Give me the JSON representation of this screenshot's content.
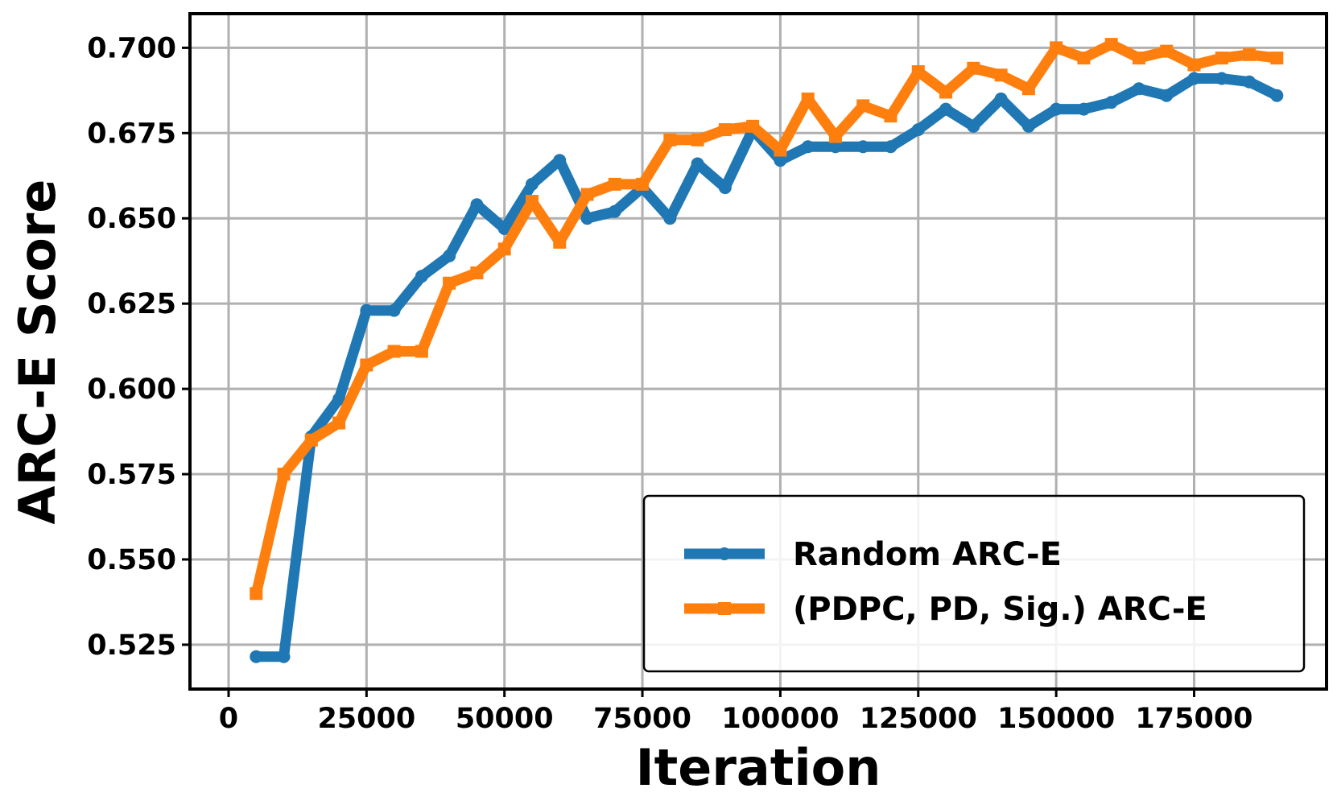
{
  "chart_data": {
    "type": "line",
    "title": "",
    "xlabel": "Iteration",
    "ylabel": "ARC-E Score",
    "xlim": [
      -7000,
      199000
    ],
    "ylim": [
      0.512,
      0.71
    ],
    "x_ticks": [
      0,
      25000,
      50000,
      75000,
      100000,
      125000,
      150000,
      175000
    ],
    "x_tick_labels": [
      "0",
      "25000",
      "50000",
      "75000",
      "100000",
      "125000",
      "150000",
      "175000"
    ],
    "y_ticks": [
      0.525,
      0.55,
      0.575,
      0.6,
      0.625,
      0.65,
      0.675,
      0.7
    ],
    "y_tick_labels": [
      "0.525",
      "0.550",
      "0.575",
      "0.600",
      "0.625",
      "0.650",
      "0.675",
      "0.700"
    ],
    "grid": true,
    "legend_position": "lower-right",
    "x": [
      5000,
      10000,
      15000,
      20000,
      25000,
      30000,
      35000,
      40000,
      45000,
      50000,
      55000,
      60000,
      65000,
      70000,
      75000,
      80000,
      85000,
      90000,
      95000,
      100000,
      105000,
      110000,
      115000,
      120000,
      125000,
      130000,
      135000,
      140000,
      145000,
      150000,
      155000,
      160000,
      165000,
      170000,
      175000,
      180000,
      185000,
      190000
    ],
    "series": [
      {
        "name": "Random ARC-E",
        "color": "#1f77b4",
        "marker": "circle",
        "values": [
          0.5215,
          0.5215,
          0.586,
          0.597,
          0.623,
          0.623,
          0.633,
          0.639,
          0.654,
          0.647,
          0.66,
          0.667,
          0.65,
          0.652,
          0.659,
          0.65,
          0.666,
          0.659,
          0.676,
          0.667,
          0.671,
          0.671,
          0.671,
          0.671,
          0.676,
          0.682,
          0.677,
          0.685,
          0.677,
          0.682,
          0.682,
          0.684,
          0.688,
          0.686,
          0.691,
          0.691,
          0.69,
          0.686
        ]
      },
      {
        "name": "(PDPC, PD, Sig.) ARC-E",
        "color": "#ff7f0e",
        "marker": "square",
        "values": [
          0.54,
          0.575,
          0.585,
          0.59,
          0.607,
          0.611,
          0.611,
          0.631,
          0.634,
          0.641,
          0.655,
          0.643,
          0.657,
          0.66,
          0.66,
          0.673,
          0.673,
          0.676,
          0.677,
          0.67,
          0.685,
          0.674,
          0.683,
          0.68,
          0.693,
          0.687,
          0.694,
          0.692,
          0.688,
          0.7,
          0.697,
          0.701,
          0.697,
          0.699,
          0.695,
          0.697,
          0.698,
          0.697
        ]
      }
    ]
  }
}
